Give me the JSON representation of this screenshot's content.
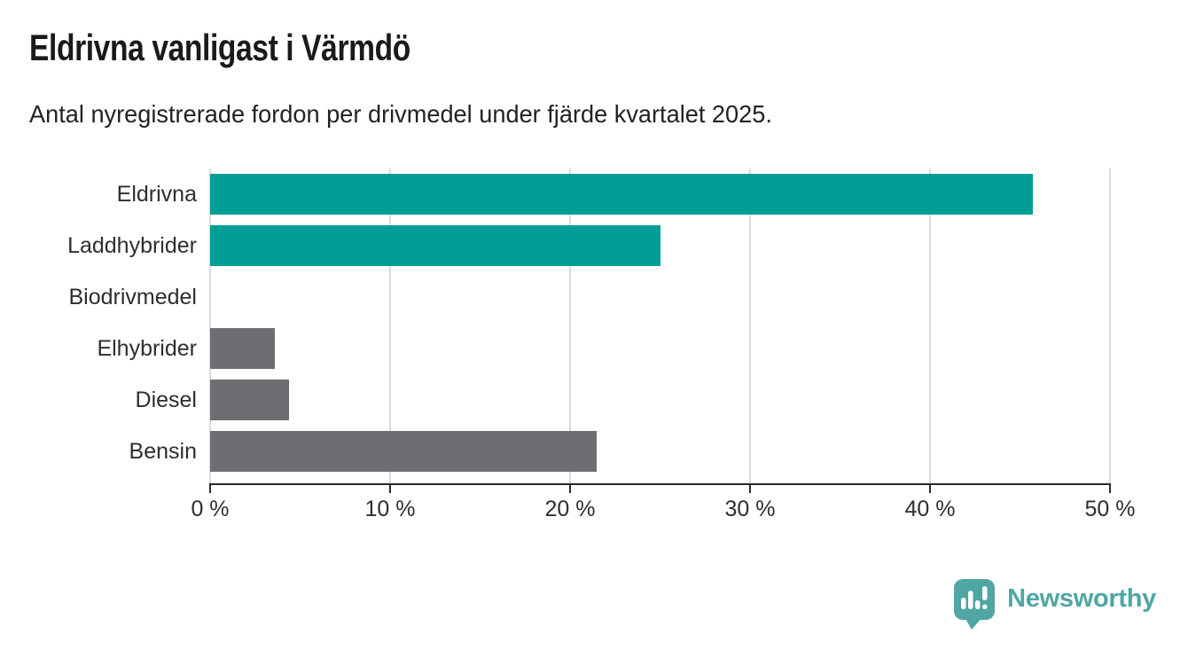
{
  "chart_data": {
    "type": "bar",
    "orientation": "horizontal",
    "title": "Eldrivna vanligast i Värmdö",
    "subtitle": "Antal nyregistrerade fordon per drivmedel under fjärde kvartalet 2025.",
    "categories": [
      "Eldrivna",
      "Laddhybrider",
      "Biodrivmedel",
      "Elhybrider",
      "Diesel",
      "Bensin"
    ],
    "values": [
      45.7,
      25.0,
      0,
      3.6,
      4.4,
      21.5
    ],
    "unit": "%",
    "xlim": [
      0,
      50
    ],
    "x_ticks": [
      {
        "value": 0,
        "label": "0 %"
      },
      {
        "value": 10,
        "label": "10 %"
      },
      {
        "value": 20,
        "label": "20 %"
      },
      {
        "value": 30,
        "label": "30 %"
      },
      {
        "value": 40,
        "label": "40 %"
      },
      {
        "value": 50,
        "label": "50 %"
      }
    ],
    "grid": "vertical-gridlines-on",
    "legend": "none",
    "bar_colors": [
      "#009E96",
      "#009E96",
      "#6E6E72",
      "#6E6E72",
      "#6E6E72",
      "#6E6E72"
    ],
    "colors": {
      "highlight_teal": "#009E96",
      "neutral_gray": "#6E6E72",
      "axis": "#2B2B2B",
      "gridline": "#DCDCDC",
      "title_text": "#1A1A1A",
      "label_text": "#2E2E2E"
    }
  },
  "footer": {
    "brand": "Newsworthy",
    "brand_color": "#4FA6A2"
  }
}
